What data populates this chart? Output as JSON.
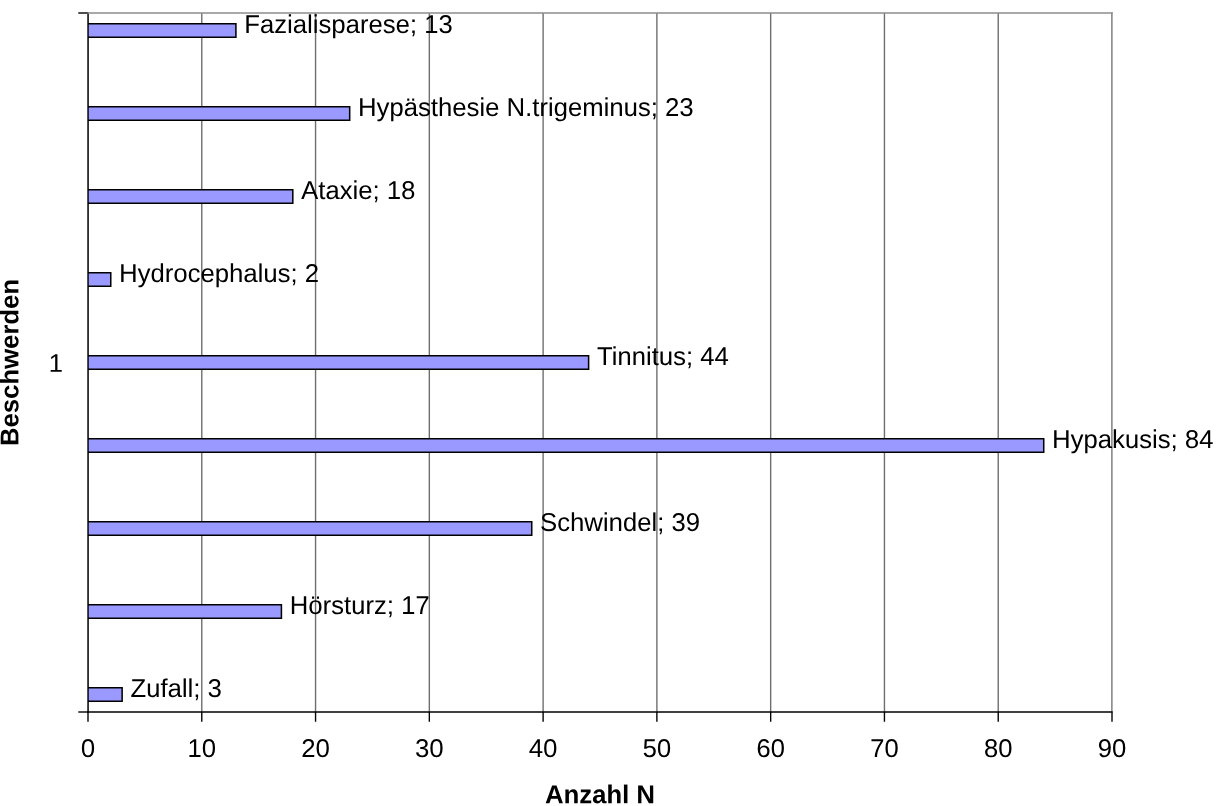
{
  "chart_data": {
    "type": "bar",
    "orientation": "horizontal",
    "xlabel": "Anzahl N",
    "ylabel": "Beschwerden",
    "categories": [
      "1"
    ],
    "xlim": [
      0,
      90
    ],
    "xticks": [
      0,
      10,
      20,
      30,
      40,
      50,
      60,
      70,
      80,
      90
    ],
    "grid": "x",
    "series": [
      {
        "color": "#9999ff",
        "values": [
          13
        ],
        "value_labels": [
          "Fazialisparese; 13"
        ]
      },
      {
        "color": "#9999ff",
        "values": [
          23
        ],
        "value_labels": [
          "Hypästhesie N.trigeminus; 23"
        ]
      },
      {
        "color": "#9999ff",
        "values": [
          18
        ],
        "value_labels": [
          "Ataxie; 18"
        ]
      },
      {
        "color": "#9999ff",
        "values": [
          2
        ],
        "value_labels": [
          "Hydrocephalus; 2"
        ]
      },
      {
        "color": "#9999ff",
        "values": [
          44
        ],
        "value_labels": [
          "Tinnitus; 44"
        ]
      },
      {
        "color": "#9999ff",
        "values": [
          84
        ],
        "value_labels": [
          "Hypakusis; 84"
        ]
      },
      {
        "color": "#9999ff",
        "values": [
          39
        ],
        "value_labels": [
          "Schwindel; 39"
        ]
      },
      {
        "color": "#9999ff",
        "values": [
          17
        ],
        "value_labels": [
          "Hörsturz; 17"
        ]
      },
      {
        "color": "#9999ff",
        "values": [
          3
        ],
        "value_labels": [
          "Zufall; 3"
        ]
      }
    ]
  }
}
